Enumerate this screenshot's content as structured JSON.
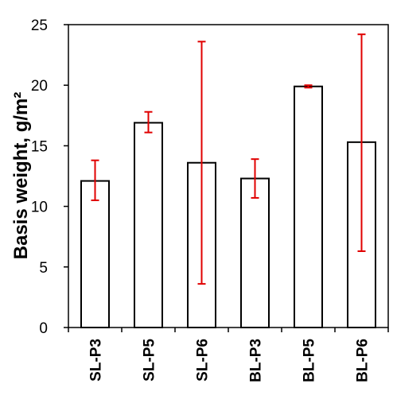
{
  "chart_data": {
    "type": "bar",
    "title": "",
    "xlabel": "",
    "ylabel": "Basis weight, g/m²",
    "ylim": [
      0,
      25
    ],
    "yticks": [
      0,
      5,
      10,
      15,
      20,
      25
    ],
    "categories": [
      "SL-P3",
      "SL-P5",
      "SL-P6",
      "BL-P3",
      "BL-P5",
      "BL-P6"
    ],
    "values": [
      12.1,
      16.9,
      13.6,
      12.3,
      19.9,
      15.3
    ],
    "error_low": [
      10.5,
      16.1,
      3.6,
      10.7,
      19.8,
      6.3
    ],
    "error_high": [
      13.8,
      17.8,
      23.6,
      13.9,
      20.0,
      24.2
    ],
    "grid": false,
    "legend": "none",
    "colors": {
      "bar_fill": "#ffffff",
      "bar_stroke": "#000000",
      "error_bar": "#e00000",
      "axis": "#000000"
    }
  }
}
